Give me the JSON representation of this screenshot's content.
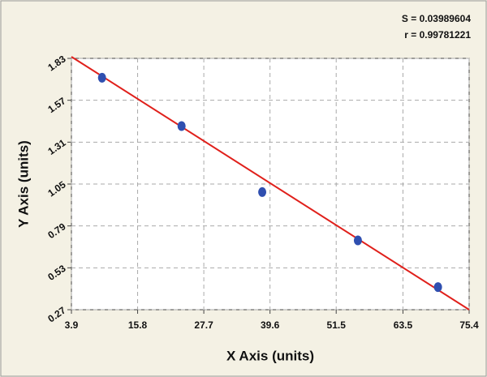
{
  "chart_data": {
    "type": "scatter",
    "x_label": "X Axis (units)",
    "y_label": "Y Axis (units)",
    "annotations": [
      "S = 0.03989604",
      "r = 0.99781221"
    ],
    "series": [
      {
        "type": "scatter",
        "color": "#2f4fb0",
        "x": [
          9.4,
          23.7,
          38.2,
          55.4,
          69.8
        ],
        "values": [
          1.71,
          1.41,
          1.0,
          0.7,
          0.41
        ]
      },
      {
        "type": "line",
        "color": "#e0201b",
        "x": [
          3.9,
          75.4
        ],
        "values": [
          1.84,
          0.27
        ]
      }
    ],
    "xlim": [
      3.9,
      75.4
    ],
    "xticks": [
      3.9,
      15.8,
      27.7,
      39.6,
      51.5,
      63.5,
      75.4
    ],
    "ylim": [
      0.27,
      1.83
    ],
    "yticks": [
      0.27,
      0.53,
      0.79,
      1.05,
      1.31,
      1.57,
      1.83
    ],
    "grid": true
  }
}
